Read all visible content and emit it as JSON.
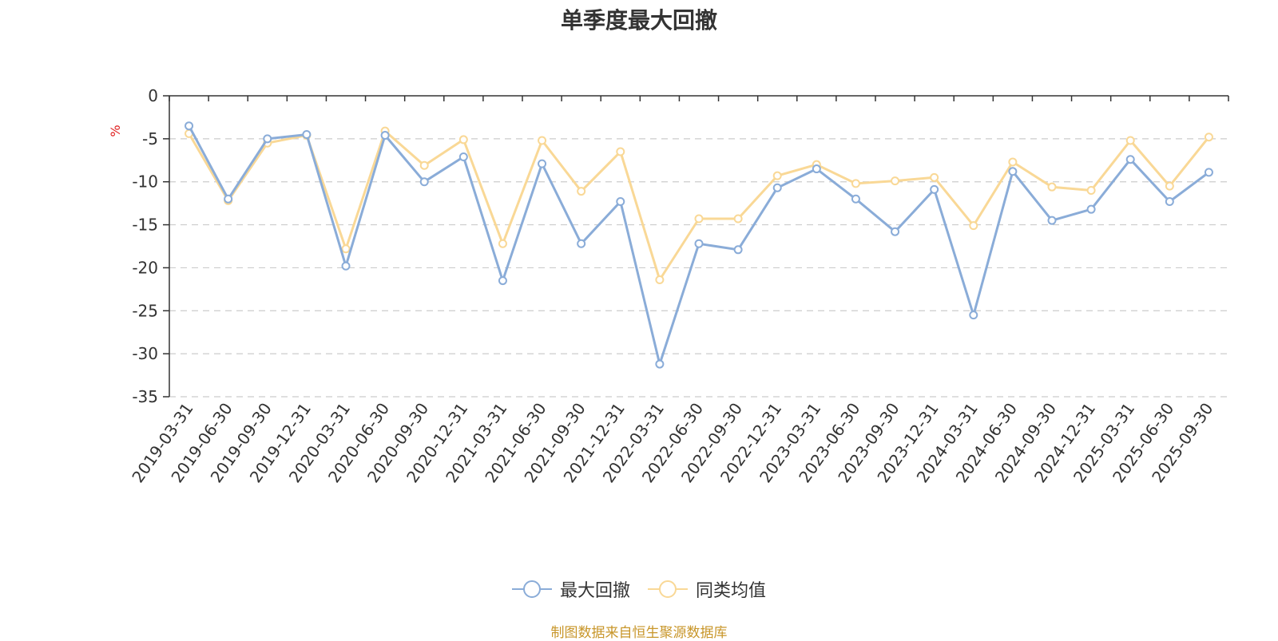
{
  "chart_data": {
    "type": "line",
    "title": "单季度最大回撤",
    "ylabel": "%",
    "ylim": [
      -35,
      0
    ],
    "yticks": [
      0,
      -5,
      -10,
      -15,
      -20,
      -25,
      -30,
      -35
    ],
    "grid": true,
    "legend_position": "bottom-center",
    "categories": [
      "2019-03-31",
      "2019-06-30",
      "2019-09-30",
      "2019-12-31",
      "2020-03-31",
      "2020-06-30",
      "2020-09-30",
      "2020-12-31",
      "2021-03-31",
      "2021-06-30",
      "2021-09-30",
      "2021-12-31",
      "2022-03-31",
      "2022-06-30",
      "2022-09-30",
      "2022-12-31",
      "2023-03-31",
      "2023-06-30",
      "2023-09-30",
      "2023-12-31",
      "2024-03-31",
      "2024-06-30",
      "2024-09-30",
      "2024-12-31",
      "2025-03-31",
      "2025-06-30",
      "2025-09-30"
    ],
    "series": [
      {
        "name": "最大回撤",
        "color": "#8aacd8",
        "values": [
          -3.5,
          -12.0,
          -5.0,
          -4.5,
          -19.8,
          -4.6,
          -10.0,
          -7.1,
          -21.5,
          -7.9,
          -17.2,
          -12.3,
          -31.2,
          -17.2,
          -17.9,
          -10.7,
          -8.5,
          -12.0,
          -15.8,
          -10.9,
          -25.5,
          -8.8,
          -14.5,
          -13.2,
          -7.4,
          -12.3,
          -8.9
        ]
      },
      {
        "name": "同类均值",
        "color": "#f9d896",
        "values": [
          -4.4,
          -12.2,
          -5.5,
          -4.6,
          -17.8,
          -4.1,
          -8.1,
          -5.1,
          -17.2,
          -5.2,
          -11.1,
          -6.5,
          -21.4,
          -14.3,
          -14.3,
          -9.3,
          -8.0,
          -10.2,
          -9.9,
          -9.5,
          -15.1,
          -7.7,
          -10.6,
          -11.0,
          -5.2,
          -10.5,
          -4.8
        ]
      }
    ]
  },
  "source_text": "制图数据来自恒生聚源数据库"
}
